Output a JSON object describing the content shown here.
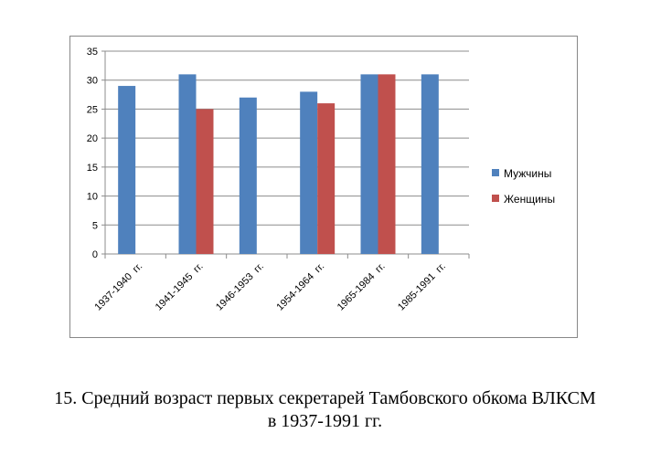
{
  "chart_data": {
    "type": "bar",
    "categories": [
      "1937-1940  гг.",
      "1941-1945  гг.",
      "1946-1953  гг.",
      "1954-1964  гг.",
      "1965-1984  гг.",
      "1985-1991  гг."
    ],
    "series": [
      {
        "name": "Мужчины",
        "color": "#4F81BD",
        "values": [
          29,
          31,
          27,
          28,
          31,
          31
        ]
      },
      {
        "name": "Женщины",
        "color": "#C0504D",
        "values": [
          null,
          25,
          null,
          26,
          31,
          null
        ]
      }
    ],
    "ylim": [
      0,
      35
    ],
    "yticks": [
      0,
      5,
      10,
      15,
      20,
      25,
      30,
      35
    ],
    "grid": true,
    "legend": "right"
  },
  "caption": {
    "line1": "15. Средний возраст первых секретарей Тамбовского обкома ВЛКСМ",
    "line2": "в 1937-1991 гг."
  }
}
